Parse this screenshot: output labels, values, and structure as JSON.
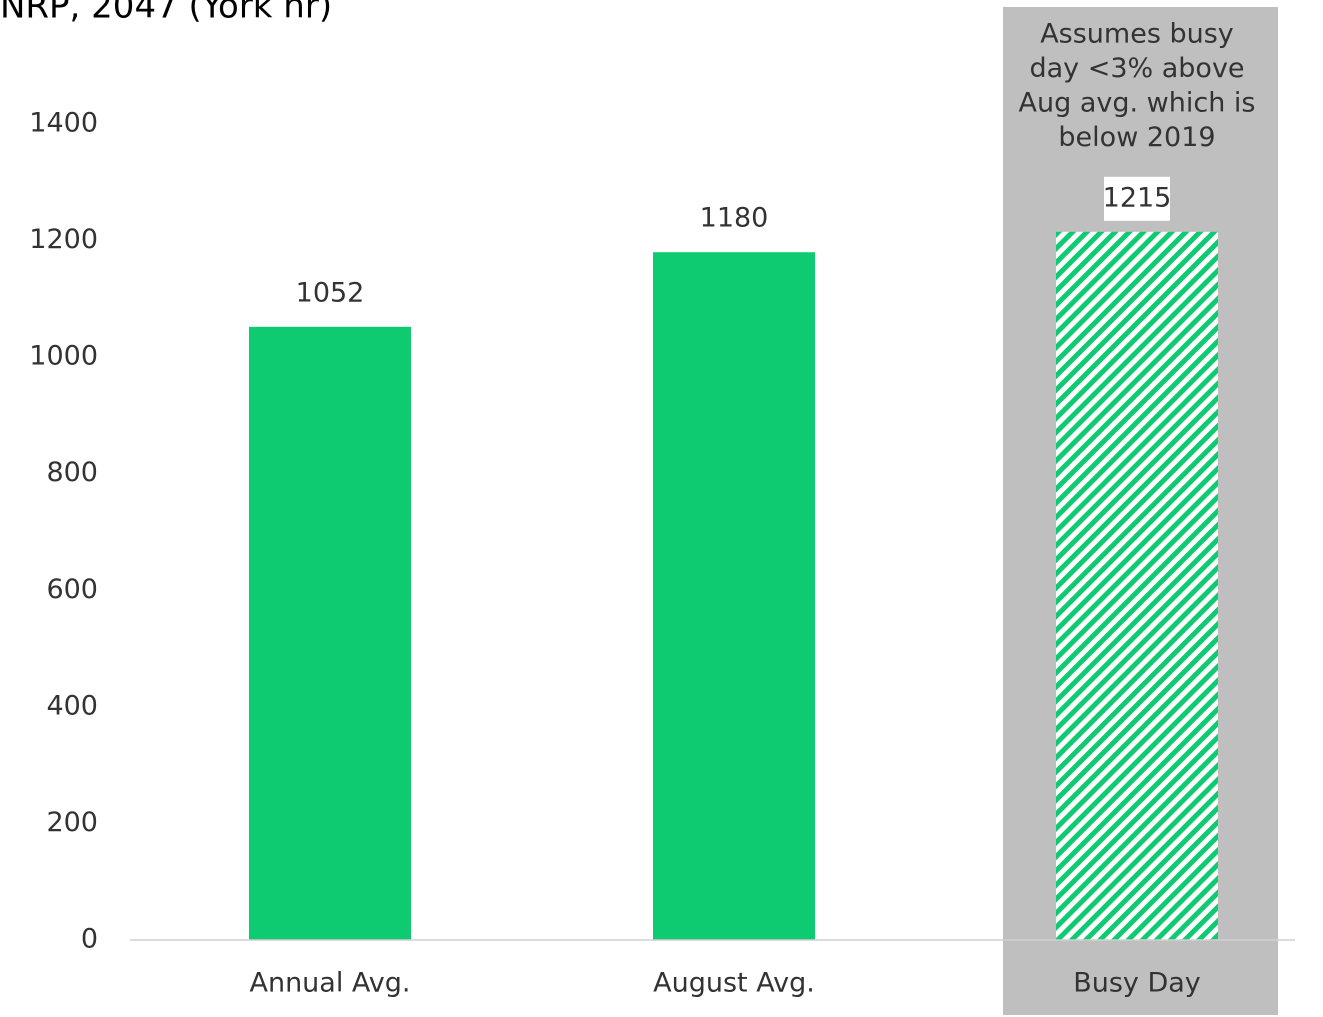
{
  "chart_data": {
    "type": "bar",
    "title": "NRP, 2047 (York hr)",
    "categories": [
      "Annual Avg.",
      "August Avg.",
      "Busy Day"
    ],
    "values": [
      1052,
      1180,
      1215
    ],
    "color": "#0ecb72",
    "hatched": [
      false,
      false,
      true
    ],
    "highlight_color": "#bfbfbf",
    "highlight": [
      false,
      false,
      true
    ],
    "annotation": [
      "Assumes busy",
      "day <3% above",
      "Aug avg. which is",
      "below 2019"
    ],
    "ylim": [
      0,
      1400
    ],
    "yticks": [
      0,
      200,
      400,
      600,
      800,
      1000,
      1200,
      1400
    ],
    "grid": false
  }
}
